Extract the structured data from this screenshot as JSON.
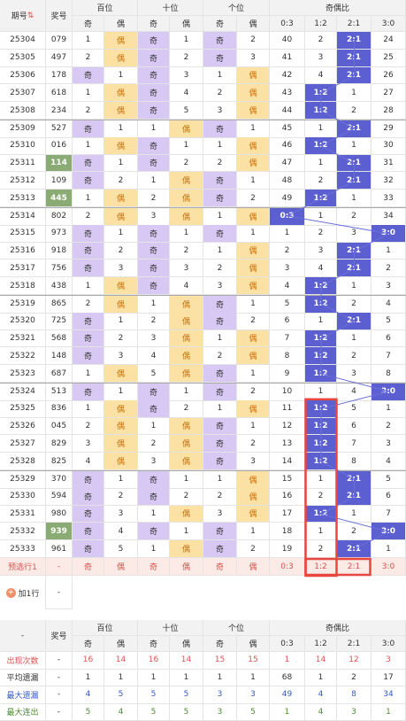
{
  "header": {
    "period": "期号",
    "award": "奖号",
    "hundreds": "百位",
    "tens": "十位",
    "ones": "个位",
    "ratio": "奇偶比",
    "odd": "奇",
    "even": "偶",
    "ratios": [
      "0:3",
      "1:2",
      "2:1",
      "3:0"
    ]
  },
  "rows": [
    {
      "p": "25304",
      "n": "079",
      "h": [
        1,
        "偶"
      ],
      "t": [
        "奇",
        1
      ],
      "o": [
        "奇",
        2
      ],
      "r": [
        40,
        2,
        "2:1",
        24
      ],
      "hl": 2
    },
    {
      "p": "25305",
      "n": "497",
      "h": [
        2,
        "偶"
      ],
      "t": [
        "奇",
        2
      ],
      "o": [
        "奇",
        3
      ],
      "r": [
        41,
        3,
        "2:1",
        25
      ],
      "hl": 2
    },
    {
      "p": "25306",
      "n": "178",
      "h": [
        "奇",
        1
      ],
      "t": [
        "奇",
        3
      ],
      "o": [
        1,
        "偶"
      ],
      "r": [
        42,
        4,
        "2:1",
        26
      ],
      "hl": 2
    },
    {
      "p": "25307",
      "n": "618",
      "h": [
        1,
        "偶"
      ],
      "t": [
        "奇",
        4
      ],
      "o": [
        2,
        "偶"
      ],
      "r": [
        43,
        "1:2",
        1,
        27
      ],
      "hl": 1
    },
    {
      "p": "25308",
      "n": "234",
      "h": [
        2,
        "偶"
      ],
      "t": [
        "奇",
        5
      ],
      "o": [
        3,
        "偶"
      ],
      "r": [
        44,
        "1:2",
        2,
        28
      ],
      "hl": 1
    },
    {
      "p": "25309",
      "n": "527",
      "h": [
        "奇",
        1
      ],
      "t": [
        1,
        "偶"
      ],
      "o": [
        "奇",
        1
      ],
      "r": [
        45,
        1,
        "2:1",
        29
      ],
      "hl": 2,
      "sep": true
    },
    {
      "p": "25310",
      "n": "016",
      "h": [
        1,
        "偶"
      ],
      "t": [
        "奇",
        1
      ],
      "o": [
        1,
        "偶"
      ],
      "r": [
        46,
        "1:2",
        1,
        30
      ],
      "hl": 1
    },
    {
      "p": "25311",
      "n": "114",
      "h": [
        "奇",
        1
      ],
      "t": [
        "奇",
        2
      ],
      "o": [
        2,
        "偶"
      ],
      "r": [
        47,
        1,
        "2:1",
        31
      ],
      "hl": 2,
      "g": true
    },
    {
      "p": "25312",
      "n": "109",
      "h": [
        "奇",
        2
      ],
      "t": [
        1,
        "偶"
      ],
      "o": [
        "奇",
        1
      ],
      "r": [
        48,
        2,
        "2:1",
        32
      ],
      "hl": 2
    },
    {
      "p": "25313",
      "n": "445",
      "h": [
        1,
        "偶"
      ],
      "t": [
        2,
        "偶"
      ],
      "o": [
        "奇",
        2
      ],
      "r": [
        49,
        "1:2",
        1,
        33
      ],
      "hl": 1,
      "g": true
    },
    {
      "p": "25314",
      "n": "802",
      "h": [
        2,
        "偶"
      ],
      "t": [
        3,
        "偶"
      ],
      "o": [
        1,
        "偶"
      ],
      "r": [
        "0:3",
        1,
        2,
        34
      ],
      "hl": 0,
      "sep": true
    },
    {
      "p": "25315",
      "n": "973",
      "h": [
        "奇",
        1
      ],
      "t": [
        "奇",
        1
      ],
      "o": [
        "奇",
        1
      ],
      "r": [
        1,
        2,
        3,
        "3:0"
      ],
      "hl": 3
    },
    {
      "p": "25316",
      "n": "918",
      "h": [
        "奇",
        2
      ],
      "t": [
        "奇",
        2
      ],
      "o": [
        1,
        "偶"
      ],
      "r": [
        2,
        3,
        "2:1",
        1
      ],
      "hl": 2
    },
    {
      "p": "25317",
      "n": "756",
      "h": [
        "奇",
        3
      ],
      "t": [
        "奇",
        3
      ],
      "o": [
        2,
        "偶"
      ],
      "r": [
        3,
        4,
        "2:1",
        2
      ],
      "hl": 2
    },
    {
      "p": "25318",
      "n": "438",
      "h": [
        1,
        "偶"
      ],
      "t": [
        "奇",
        4
      ],
      "o": [
        3,
        "偶"
      ],
      "r": [
        4,
        "1:2",
        1,
        3
      ],
      "hl": 1
    },
    {
      "p": "25319",
      "n": "865",
      "h": [
        2,
        "偶"
      ],
      "t": [
        1,
        "偶"
      ],
      "o": [
        "奇",
        1
      ],
      "r": [
        5,
        "1:2",
        2,
        4
      ],
      "hl": 1,
      "sep": true
    },
    {
      "p": "25320",
      "n": "725",
      "h": [
        "奇",
        1
      ],
      "t": [
        2,
        "偶"
      ],
      "o": [
        "奇",
        2
      ],
      "r": [
        6,
        1,
        "2:1",
        5
      ],
      "hl": 2
    },
    {
      "p": "25321",
      "n": "568",
      "h": [
        "奇",
        2
      ],
      "t": [
        3,
        "偶"
      ],
      "o": [
        1,
        "偶"
      ],
      "r": [
        7,
        "1:2",
        1,
        6
      ],
      "hl": 1
    },
    {
      "p": "25322",
      "n": "148",
      "h": [
        "奇",
        3
      ],
      "t": [
        4,
        "偶"
      ],
      "o": [
        2,
        "偶"
      ],
      "r": [
        8,
        "1:2",
        2,
        7
      ],
      "hl": 1
    },
    {
      "p": "25323",
      "n": "687",
      "h": [
        1,
        "偶"
      ],
      "t": [
        5,
        "偶"
      ],
      "o": [
        "奇",
        1
      ],
      "r": [
        9,
        "1:2",
        3,
        8
      ],
      "hl": 1
    },
    {
      "p": "25324",
      "n": "513",
      "h": [
        "奇",
        1
      ],
      "t": [
        "奇",
        1
      ],
      "o": [
        "奇",
        2
      ],
      "r": [
        10,
        1,
        4,
        "3:0"
      ],
      "hl": 3,
      "sep": true
    },
    {
      "p": "25325",
      "n": "836",
      "h": [
        1,
        "偶"
      ],
      "t": [
        "奇",
        2
      ],
      "o": [
        1,
        "偶"
      ],
      "r": [
        11,
        "1:2",
        5,
        1
      ],
      "hl": 1
    },
    {
      "p": "25326",
      "n": "045",
      "h": [
        2,
        "偶"
      ],
      "t": [
        1,
        "偶"
      ],
      "o": [
        "奇",
        1
      ],
      "r": [
        12,
        "1:2",
        6,
        2
      ],
      "hl": 1
    },
    {
      "p": "25327",
      "n": "829",
      "h": [
        3,
        "偶"
      ],
      "t": [
        2,
        "偶"
      ],
      "o": [
        "奇",
        2
      ],
      "r": [
        13,
        "1:2",
        7,
        3
      ],
      "hl": 1
    },
    {
      "p": "25328",
      "n": "825",
      "h": [
        4,
        "偶"
      ],
      "t": [
        3,
        "偶"
      ],
      "o": [
        "奇",
        3
      ],
      "r": [
        14,
        "1:2",
        8,
        4
      ],
      "hl": 1
    },
    {
      "p": "25329",
      "n": "370",
      "h": [
        "奇",
        1
      ],
      "t": [
        "奇",
        1
      ],
      "o": [
        1,
        "偶"
      ],
      "r": [
        15,
        1,
        "2:1",
        5
      ],
      "hl": 2,
      "sep": true
    },
    {
      "p": "25330",
      "n": "594",
      "h": [
        "奇",
        2
      ],
      "t": [
        "奇",
        2
      ],
      "o": [
        2,
        "偶"
      ],
      "r": [
        16,
        2,
        "2:1",
        6
      ],
      "hl": 2
    },
    {
      "p": "25331",
      "n": "980",
      "h": [
        "奇",
        3
      ],
      "t": [
        1,
        "偶"
      ],
      "o": [
        3,
        "偶"
      ],
      "r": [
        17,
        "1:2",
        1,
        7
      ],
      "hl": 1
    },
    {
      "p": "25332",
      "n": "939",
      "h": [
        "奇",
        4
      ],
      "t": [
        "奇",
        1
      ],
      "o": [
        "奇",
        1
      ],
      "r": [
        18,
        1,
        2,
        "3:0"
      ],
      "hl": 3,
      "g": true
    },
    {
      "p": "25333",
      "n": "961",
      "h": [
        "奇",
        5
      ],
      "t": [
        1,
        "偶"
      ],
      "o": [
        "奇",
        2
      ],
      "r": [
        19,
        2,
        "2:1",
        1
      ],
      "hl": 2
    }
  ],
  "predict": {
    "label": "预选行1",
    "dash": "-",
    "cells": [
      "奇",
      "偶",
      "奇",
      "偶",
      "奇",
      "偶"
    ],
    "ratios": [
      "0:3",
      "1:2",
      "2:1",
      "3:0"
    ]
  },
  "add_row": {
    "label": "加1行",
    "plus": "+",
    "dash": "-"
  },
  "stats": [
    {
      "label": "出现次数",
      "dash": "-",
      "v": [
        16,
        14,
        16,
        14,
        15,
        15,
        1,
        14,
        12,
        3
      ],
      "cls": "stat-red"
    },
    {
      "label": "平均遗漏",
      "dash": "-",
      "v": [
        1,
        1,
        1,
        1,
        1,
        1,
        68,
        1,
        2,
        17
      ],
      "cls": ""
    },
    {
      "label": "最大遗漏",
      "dash": "-",
      "v": [
        4,
        5,
        5,
        5,
        3,
        3,
        49,
        4,
        8,
        34
      ],
      "cls": "stat-blue"
    },
    {
      "label": "最大连出",
      "dash": "-",
      "v": [
        5,
        4,
        5,
        5,
        3,
        5,
        1,
        4,
        3,
        1
      ],
      "cls": "stat-grn"
    }
  ],
  "colors": {
    "line": "#6b70d8",
    "box": "#e8463f"
  }
}
